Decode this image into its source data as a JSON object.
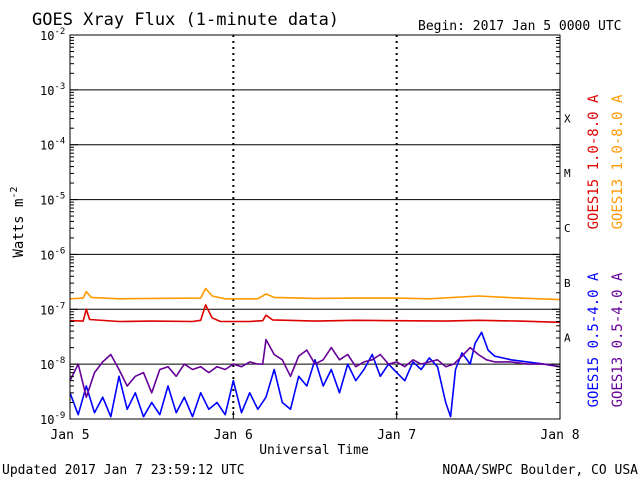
{
  "header": {
    "title": "GOES Xray Flux (1-minute data)",
    "begin": "Begin:  2017 Jan 5 0000 UTC"
  },
  "footer": {
    "updated": "Updated 2017 Jan  7 23:59:12 UTC",
    "source": "NOAA/SWPC Boulder, CO USA"
  },
  "chart_data": {
    "type": "line",
    "xlabel": "Universal Time",
    "ylabel": "Watts m",
    "ylabel_sup": "-2",
    "y_scale": "log",
    "ylim": [
      1e-09,
      0.01
    ],
    "xlim_days": [
      0,
      3
    ],
    "y_ticks": [
      {
        "exp": -2,
        "label": "10",
        "sup": "-2"
      },
      {
        "exp": -3,
        "label": "10",
        "sup": "-3"
      },
      {
        "exp": -4,
        "label": "10",
        "sup": "-4"
      },
      {
        "exp": -5,
        "label": "10",
        "sup": "-5"
      },
      {
        "exp": -6,
        "label": "10",
        "sup": "-6"
      },
      {
        "exp": -7,
        "label": "10",
        "sup": "-7"
      },
      {
        "exp": -8,
        "label": "10",
        "sup": "-8"
      },
      {
        "exp": -9,
        "label": "10",
        "sup": "-9"
      }
    ],
    "x_ticks": [
      {
        "day": 0,
        "label": "Jan 5"
      },
      {
        "day": 1,
        "label": "Jan 6"
      },
      {
        "day": 2,
        "label": "Jan 7"
      },
      {
        "day": 3,
        "label": "Jan 8"
      }
    ],
    "flare_classes": [
      {
        "label": "X",
        "exp": -4
      },
      {
        "label": "M",
        "exp": -5
      },
      {
        "label": "C",
        "exp": -6
      },
      {
        "label": "B",
        "exp": -7
      },
      {
        "label": "A",
        "exp": -8
      }
    ],
    "grid": true,
    "legend_position": "right",
    "series": [
      {
        "name": "GOES15 1.0-8.0 A",
        "color": "#dd0000",
        "points": [
          [
            0.0,
            6.2e-08
          ],
          [
            0.08,
            6.1e-08
          ],
          [
            0.1,
            1e-07
          ],
          [
            0.12,
            6.5e-08
          ],
          [
            0.3,
            6e-08
          ],
          [
            0.5,
            6.1e-08
          ],
          [
            0.75,
            6e-08
          ],
          [
            0.8,
            6.3e-08
          ],
          [
            0.83,
            1.2e-07
          ],
          [
            0.87,
            7e-08
          ],
          [
            0.92,
            6e-08
          ],
          [
            1.1,
            6e-08
          ],
          [
            1.18,
            6.2e-08
          ],
          [
            1.2,
            7.8e-08
          ],
          [
            1.24,
            6.4e-08
          ],
          [
            1.5,
            6.1e-08
          ],
          [
            1.75,
            6.3e-08
          ],
          [
            2.0,
            6.2e-08
          ],
          [
            2.3,
            6.1e-08
          ],
          [
            2.5,
            6.3e-08
          ],
          [
            2.75,
            6.1e-08
          ],
          [
            3.0,
            5.8e-08
          ]
        ]
      },
      {
        "name": "GOES13 1.0-8.0 A",
        "color": "#ff9900",
        "points": [
          [
            0.0,
            1.55e-07
          ],
          [
            0.08,
            1.6e-07
          ],
          [
            0.1,
            2.1e-07
          ],
          [
            0.13,
            1.65e-07
          ],
          [
            0.3,
            1.55e-07
          ],
          [
            0.5,
            1.58e-07
          ],
          [
            0.8,
            1.6e-07
          ],
          [
            0.83,
            2.4e-07
          ],
          [
            0.87,
            1.75e-07
          ],
          [
            0.95,
            1.55e-07
          ],
          [
            1.15,
            1.55e-07
          ],
          [
            1.2,
            1.9e-07
          ],
          [
            1.25,
            1.65e-07
          ],
          [
            1.5,
            1.58e-07
          ],
          [
            1.75,
            1.6e-07
          ],
          [
            2.0,
            1.6e-07
          ],
          [
            2.2,
            1.55e-07
          ],
          [
            2.5,
            1.75e-07
          ],
          [
            2.75,
            1.6e-07
          ],
          [
            3.0,
            1.5e-07
          ]
        ]
      },
      {
        "name": "GOES15 0.5-4.0 A",
        "color": "#0000ff",
        "points": [
          [
            0.0,
            3e-09
          ],
          [
            0.05,
            1.2e-09
          ],
          [
            0.1,
            4e-09
          ],
          [
            0.15,
            1.3e-09
          ],
          [
            0.2,
            2.5e-09
          ],
          [
            0.25,
            1.1e-09
          ],
          [
            0.3,
            6e-09
          ],
          [
            0.35,
            1.5e-09
          ],
          [
            0.4,
            3e-09
          ],
          [
            0.45,
            1.1e-09
          ],
          [
            0.5,
            2e-09
          ],
          [
            0.55,
            1.2e-09
          ],
          [
            0.6,
            4e-09
          ],
          [
            0.65,
            1.3e-09
          ],
          [
            0.7,
            2.5e-09
          ],
          [
            0.75,
            1.1e-09
          ],
          [
            0.8,
            3e-09
          ],
          [
            0.85,
            1.5e-09
          ],
          [
            0.9,
            2e-09
          ],
          [
            0.95,
            1.2e-09
          ],
          [
            1.0,
            5e-09
          ],
          [
            1.05,
            1.3e-09
          ],
          [
            1.1,
            3e-09
          ],
          [
            1.15,
            1.5e-09
          ],
          [
            1.2,
            2.5e-09
          ],
          [
            1.25,
            8e-09
          ],
          [
            1.3,
            2e-09
          ],
          [
            1.35,
            1.5e-09
          ],
          [
            1.4,
            6e-09
          ],
          [
            1.45,
            4e-09
          ],
          [
            1.5,
            1.2e-08
          ],
          [
            1.55,
            4e-09
          ],
          [
            1.6,
            8e-09
          ],
          [
            1.65,
            3e-09
          ],
          [
            1.7,
            1e-08
          ],
          [
            1.75,
            5e-09
          ],
          [
            1.8,
            8e-09
          ],
          [
            1.85,
            1.5e-08
          ],
          [
            1.9,
            6e-09
          ],
          [
            1.95,
            1e-08
          ],
          [
            2.0,
            7e-09
          ],
          [
            2.05,
            5e-09
          ],
          [
            2.1,
            1.1e-08
          ],
          [
            2.15,
            8e-09
          ],
          [
            2.2,
            1.3e-08
          ],
          [
            2.25,
            9e-09
          ],
          [
            2.3,
            2e-09
          ],
          [
            2.33,
            1.1e-09
          ],
          [
            2.36,
            8e-09
          ],
          [
            2.4,
            1.6e-08
          ],
          [
            2.45,
            1e-08
          ],
          [
            2.48,
            2.4e-08
          ],
          [
            2.52,
            3.8e-08
          ],
          [
            2.56,
            1.8e-08
          ],
          [
            2.6,
            1.4e-08
          ],
          [
            2.7,
            1.2e-08
          ],
          [
            2.8,
            1.1e-08
          ],
          [
            2.9,
            1e-08
          ],
          [
            3.0,
            9e-09
          ]
        ]
      },
      {
        "name": "GOES13 0.5-4.0 A",
        "color": "#660099",
        "points": [
          [
            0.0,
            5e-09
          ],
          [
            0.05,
            1e-08
          ],
          [
            0.1,
            2.5e-09
          ],
          [
            0.15,
            7e-09
          ],
          [
            0.2,
            1.1e-08
          ],
          [
            0.25,
            1.5e-08
          ],
          [
            0.3,
            8e-09
          ],
          [
            0.35,
            4e-09
          ],
          [
            0.4,
            6e-09
          ],
          [
            0.45,
            7e-09
          ],
          [
            0.5,
            3e-09
          ],
          [
            0.55,
            8e-09
          ],
          [
            0.6,
            9e-09
          ],
          [
            0.65,
            6e-09
          ],
          [
            0.7,
            1e-08
          ],
          [
            0.75,
            8e-09
          ],
          [
            0.8,
            9e-09
          ],
          [
            0.85,
            7e-09
          ],
          [
            0.9,
            9e-09
          ],
          [
            0.95,
            8e-09
          ],
          [
            1.0,
            1e-08
          ],
          [
            1.05,
            9e-09
          ],
          [
            1.1,
            1.1e-08
          ],
          [
            1.15,
            1e-08
          ],
          [
            1.18,
            1e-08
          ],
          [
            1.2,
            2.8e-08
          ],
          [
            1.25,
            1.5e-08
          ],
          [
            1.3,
            1.2e-08
          ],
          [
            1.35,
            6e-09
          ],
          [
            1.4,
            1.4e-08
          ],
          [
            1.45,
            1.8e-08
          ],
          [
            1.5,
            1e-08
          ],
          [
            1.55,
            1.2e-08
          ],
          [
            1.6,
            2e-08
          ],
          [
            1.65,
            1.2e-08
          ],
          [
            1.7,
            1.5e-08
          ],
          [
            1.75,
            9e-09
          ],
          [
            1.8,
            1.1e-08
          ],
          [
            1.85,
            1.2e-08
          ],
          [
            1.9,
            1.5e-08
          ],
          [
            1.95,
            1e-08
          ],
          [
            2.0,
            1.1e-08
          ],
          [
            2.05,
            9e-09
          ],
          [
            2.1,
            1.2e-08
          ],
          [
            2.15,
            1e-08
          ],
          [
            2.2,
            1.1e-08
          ],
          [
            2.25,
            1.2e-08
          ],
          [
            2.3,
            9e-09
          ],
          [
            2.35,
            1e-08
          ],
          [
            2.4,
            1.4e-08
          ],
          [
            2.45,
            2e-08
          ],
          [
            2.5,
            1.5e-08
          ],
          [
            2.55,
            1.2e-08
          ],
          [
            2.6,
            1.1e-08
          ],
          [
            2.7,
            1.1e-08
          ],
          [
            2.8,
            1e-08
          ],
          [
            2.9,
            1e-08
          ],
          [
            3.0,
            9e-09
          ]
        ]
      }
    ]
  }
}
